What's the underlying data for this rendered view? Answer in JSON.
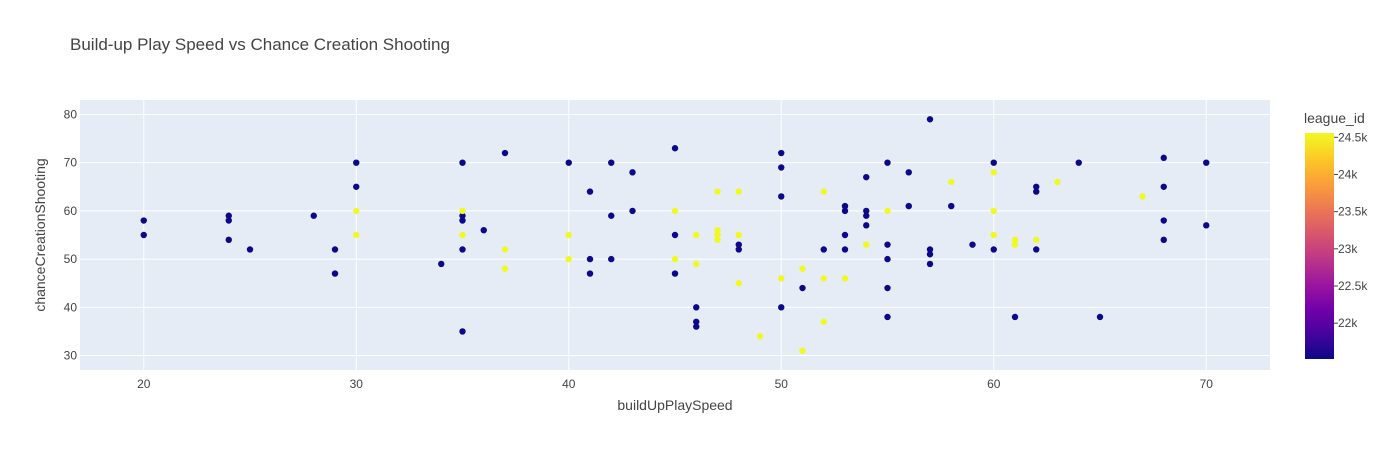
{
  "chart_data": {
    "type": "scatter",
    "title": "Build-up Play Speed vs Chance Creation Shooting",
    "xlabel": "buildUpPlaySpeed",
    "ylabel": "chanceCreationShooting",
    "xlim": [
      17,
      73
    ],
    "ylim": [
      27,
      83
    ],
    "x_ticks": [
      20,
      30,
      40,
      50,
      60,
      70
    ],
    "y_ticks": [
      30,
      40,
      50,
      60,
      70,
      80
    ],
    "grid": true,
    "colorbar": {
      "title": "league_id",
      "range": [
        21518,
        24558
      ],
      "ticks": [
        22000,
        22500,
        23000,
        23500,
        24000,
        24500
      ],
      "tick_labels": [
        "22k",
        "22.5k",
        "23k",
        "23.5k",
        "24k",
        "24.5k"
      ],
      "colorscale": [
        "#0d0887",
        "#46039f",
        "#7201a8",
        "#9c179e",
        "#bd3786",
        "#d8576b",
        "#ed7953",
        "#fb9f3a",
        "#fdca26",
        "#f0f921"
      ]
    },
    "colors": {
      "plot_background": "#e5ecf6",
      "gridline": "#ffffff",
      "low": "#0d0887",
      "high": "#f0f921"
    },
    "points": {
      "low": [
        [
          20,
          58
        ],
        [
          20,
          55
        ],
        [
          24,
          59
        ],
        [
          24,
          58
        ],
        [
          24,
          54
        ],
        [
          25,
          52
        ],
        [
          28,
          59
        ],
        [
          29,
          52
        ],
        [
          29,
          47
        ],
        [
          30,
          70
        ],
        [
          30,
          65
        ],
        [
          34,
          49
        ],
        [
          35,
          70
        ],
        [
          35,
          59
        ],
        [
          35,
          58
        ],
        [
          35,
          52
        ],
        [
          35,
          35
        ],
        [
          36,
          56
        ],
        [
          37,
          72
        ],
        [
          40,
          70
        ],
        [
          41,
          64
        ],
        [
          41,
          50
        ],
        [
          41,
          47
        ],
        [
          42,
          70
        ],
        [
          42,
          59
        ],
        [
          42,
          50
        ],
        [
          43,
          68
        ],
        [
          43,
          60
        ],
        [
          45,
          73
        ],
        [
          45,
          55
        ],
        [
          45,
          47
        ],
        [
          46,
          40
        ],
        [
          46,
          37
        ],
        [
          46,
          36
        ],
        [
          48,
          53
        ],
        [
          48,
          52
        ],
        [
          50,
          72
        ],
        [
          50,
          69
        ],
        [
          50,
          63
        ],
        [
          50,
          40
        ],
        [
          51,
          44
        ],
        [
          52,
          52
        ],
        [
          53,
          61
        ],
        [
          53,
          60
        ],
        [
          53,
          55
        ],
        [
          53,
          52
        ],
        [
          54,
          67
        ],
        [
          54,
          60
        ],
        [
          54,
          59
        ],
        [
          54,
          57
        ],
        [
          55,
          70
        ],
        [
          55,
          53
        ],
        [
          55,
          50
        ],
        [
          55,
          44
        ],
        [
          55,
          38
        ],
        [
          56,
          68
        ],
        [
          56,
          61
        ],
        [
          57,
          79
        ],
        [
          57,
          52
        ],
        [
          57,
          51
        ],
        [
          57,
          49
        ],
        [
          58,
          61
        ],
        [
          59,
          53
        ],
        [
          60,
          70
        ],
        [
          60,
          52
        ],
        [
          61,
          38
        ],
        [
          62,
          65
        ],
        [
          62,
          64
        ],
        [
          62,
          52
        ],
        [
          64,
          70
        ],
        [
          65,
          38
        ],
        [
          68,
          71
        ],
        [
          68,
          65
        ],
        [
          68,
          58
        ],
        [
          68,
          54
        ],
        [
          70,
          70
        ],
        [
          70,
          57
        ]
      ],
      "high": [
        [
          30,
          60
        ],
        [
          30,
          55
        ],
        [
          35,
          60
        ],
        [
          35,
          55
        ],
        [
          37,
          52
        ],
        [
          37,
          48
        ],
        [
          40,
          55
        ],
        [
          40,
          50
        ],
        [
          45,
          60
        ],
        [
          45,
          50
        ],
        [
          46,
          55
        ],
        [
          46,
          49
        ],
        [
          47,
          64
        ],
        [
          47,
          56
        ],
        [
          47,
          55
        ],
        [
          47,
          54
        ],
        [
          48,
          64
        ],
        [
          48,
          55
        ],
        [
          48,
          45
        ],
        [
          49,
          34
        ],
        [
          50,
          46
        ],
        [
          51,
          48
        ],
        [
          51,
          31
        ],
        [
          52,
          64
        ],
        [
          52,
          46
        ],
        [
          52,
          37
        ],
        [
          53,
          46
        ],
        [
          54,
          53
        ],
        [
          55,
          60
        ],
        [
          58,
          66
        ],
        [
          60,
          68
        ],
        [
          60,
          60
        ],
        [
          60,
          55
        ],
        [
          61,
          54
        ],
        [
          61,
          53
        ],
        [
          62,
          54
        ],
        [
          63,
          66
        ],
        [
          67,
          63
        ]
      ]
    }
  }
}
